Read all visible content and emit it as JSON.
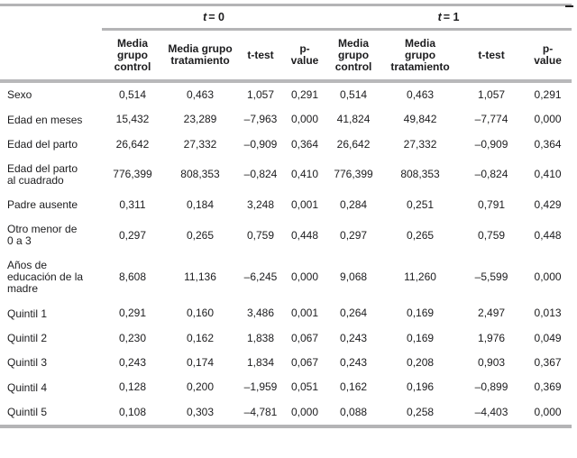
{
  "table": {
    "groups": [
      {
        "var": "t",
        "eq": "= 0"
      },
      {
        "var": "t",
        "eq": "= 1"
      }
    ],
    "sub_headers": [
      "Media grupo control",
      "Media grupo tratamiento",
      "t-test",
      "p-value",
      "Media grupo control",
      "Media grupo tratamiento",
      "t-test",
      "p-value"
    ],
    "rows": [
      {
        "label": "Sexo",
        "values": [
          "0,514",
          "0,463",
          "1,057",
          "0,291",
          "0,514",
          "0,463",
          "1,057",
          "0,291"
        ]
      },
      {
        "label": "Edad en meses",
        "values": [
          "15,432",
          "23,289",
          "–7,963",
          "0,000",
          "41,824",
          "49,842",
          "–7,774",
          "0,000"
        ]
      },
      {
        "label": "Edad del parto",
        "values": [
          "26,642",
          "27,332",
          "–0,909",
          "0,364",
          "26,642",
          "27,332",
          "–0,909",
          "0,364"
        ]
      },
      {
        "label": "Edad del parto al cuadrado",
        "values": [
          "776,399",
          "808,353",
          "–0,824",
          "0,410",
          "776,399",
          "808,353",
          "–0,824",
          "0,410"
        ]
      },
      {
        "label": "Padre ausente",
        "values": [
          "0,311",
          "0,184",
          "3,248",
          "0,001",
          "0,284",
          "0,251",
          "0,791",
          "0,429"
        ]
      },
      {
        "label": "Otro menor de 0 a 3",
        "values": [
          "0,297",
          "0,265",
          "0,759",
          "0,448",
          "0,297",
          "0,265",
          "0,759",
          "0,448"
        ]
      },
      {
        "label": "Años de educación de la madre",
        "values": [
          "8,608",
          "11,136",
          "–6,245",
          "0,000",
          "9,068",
          "11,260",
          "–5,599",
          "0,000"
        ]
      },
      {
        "label": "Quintil 1",
        "values": [
          "0,291",
          "0,160",
          "3,486",
          "0,001",
          "0,264",
          "0,169",
          "2,497",
          "0,013"
        ]
      },
      {
        "label": "Quintil 2",
        "values": [
          "0,230",
          "0,162",
          "1,838",
          "0,067",
          "0,243",
          "0,169",
          "1,976",
          "0,049"
        ]
      },
      {
        "label": "Quintil 3",
        "values": [
          "0,243",
          "0,174",
          "1,834",
          "0,067",
          "0,243",
          "0,208",
          "0,903",
          "0,367"
        ]
      },
      {
        "label": "Quintil 4",
        "values": [
          "0,128",
          "0,200",
          "–1,959",
          "0,051",
          "0,162",
          "0,196",
          "–0,899",
          "0,369"
        ]
      },
      {
        "label": "Quintil 5",
        "values": [
          "0,108",
          "0,303",
          "–4,781",
          "0,000",
          "0,088",
          "0,258",
          "–4,403",
          "0,000"
        ]
      }
    ],
    "colors": {
      "rule": "#b4b4b6",
      "text": "#1c1c1e"
    }
  }
}
